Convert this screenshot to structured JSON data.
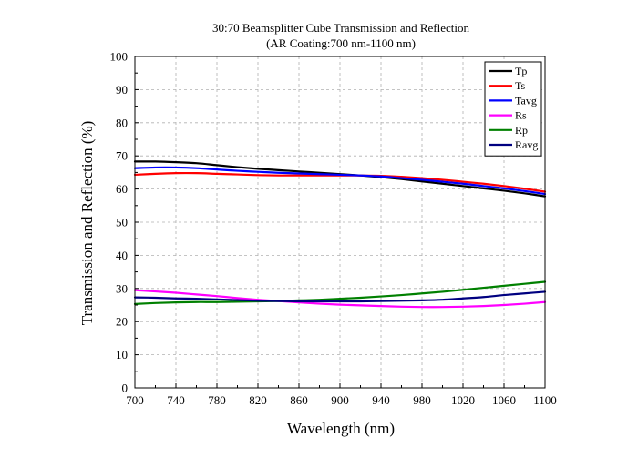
{
  "chart_data": {
    "type": "line",
    "title": "30:70 Beamsplitter Cube Transmission and Reflection",
    "subtitle": "(AR Coating:700 nm-1100 nm)",
    "xlabel": "Wavelength (nm)",
    "ylabel": "Transmission and Reflection (%)",
    "xlim": [
      700,
      1100
    ],
    "ylim": [
      0,
      100
    ],
    "xticks": [
      700,
      740,
      780,
      820,
      860,
      900,
      940,
      980,
      1020,
      1060,
      1100
    ],
    "yticks": [
      0,
      10,
      20,
      30,
      40,
      50,
      60,
      70,
      80,
      90,
      100
    ],
    "grid": true,
    "legend_position": "top-right",
    "x": [
      700,
      720,
      740,
      760,
      780,
      800,
      820,
      840,
      860,
      880,
      900,
      920,
      940,
      960,
      980,
      1000,
      1020,
      1040,
      1060,
      1080,
      1100
    ],
    "series": [
      {
        "name": "Tp",
        "color": "#000000",
        "values": [
          68.3,
          68.3,
          68.1,
          67.8,
          67.2,
          66.6,
          66.1,
          65.7,
          65.3,
          64.9,
          64.5,
          64.1,
          63.6,
          63.0,
          62.3,
          61.6,
          60.9,
          60.2,
          59.5,
          58.7,
          57.8
        ]
      },
      {
        "name": "Ts",
        "color": "#ff0000",
        "values": [
          64.3,
          64.6,
          64.8,
          64.8,
          64.6,
          64.4,
          64.2,
          64.1,
          64.1,
          64.1,
          64.1,
          64.1,
          64.0,
          63.7,
          63.3,
          62.8,
          62.2,
          61.6,
          60.9,
          60.1,
          59.2
        ]
      },
      {
        "name": "Tavg",
        "color": "#0000ff",
        "values": [
          66.3,
          66.5,
          66.5,
          66.3,
          65.9,
          65.5,
          65.2,
          64.9,
          64.7,
          64.5,
          64.3,
          64.1,
          63.8,
          63.3,
          62.8,
          62.2,
          61.6,
          60.9,
          60.2,
          59.4,
          58.5
        ]
      },
      {
        "name": "Rs",
        "color": "#ff00ff",
        "values": [
          29.5,
          29.1,
          28.7,
          28.2,
          27.7,
          27.1,
          26.6,
          26.2,
          25.8,
          25.4,
          25.1,
          24.9,
          24.7,
          24.5,
          24.4,
          24.4,
          24.5,
          24.7,
          25.0,
          25.4,
          25.9
        ]
      },
      {
        "name": "Rp",
        "color": "#008000",
        "values": [
          25.3,
          25.6,
          25.8,
          25.9,
          25.9,
          26.0,
          26.1,
          26.2,
          26.4,
          26.6,
          26.9,
          27.2,
          27.6,
          28.0,
          28.5,
          29.0,
          29.6,
          30.2,
          30.8,
          31.4,
          32.0
        ]
      },
      {
        "name": "Ravg",
        "color": "#000080",
        "values": [
          27.3,
          27.2,
          27.0,
          26.9,
          26.7,
          26.5,
          26.3,
          26.2,
          26.1,
          26.1,
          26.1,
          26.1,
          26.2,
          26.3,
          26.4,
          26.6,
          27.0,
          27.4,
          28.0,
          28.5,
          29.0
        ]
      }
    ]
  }
}
